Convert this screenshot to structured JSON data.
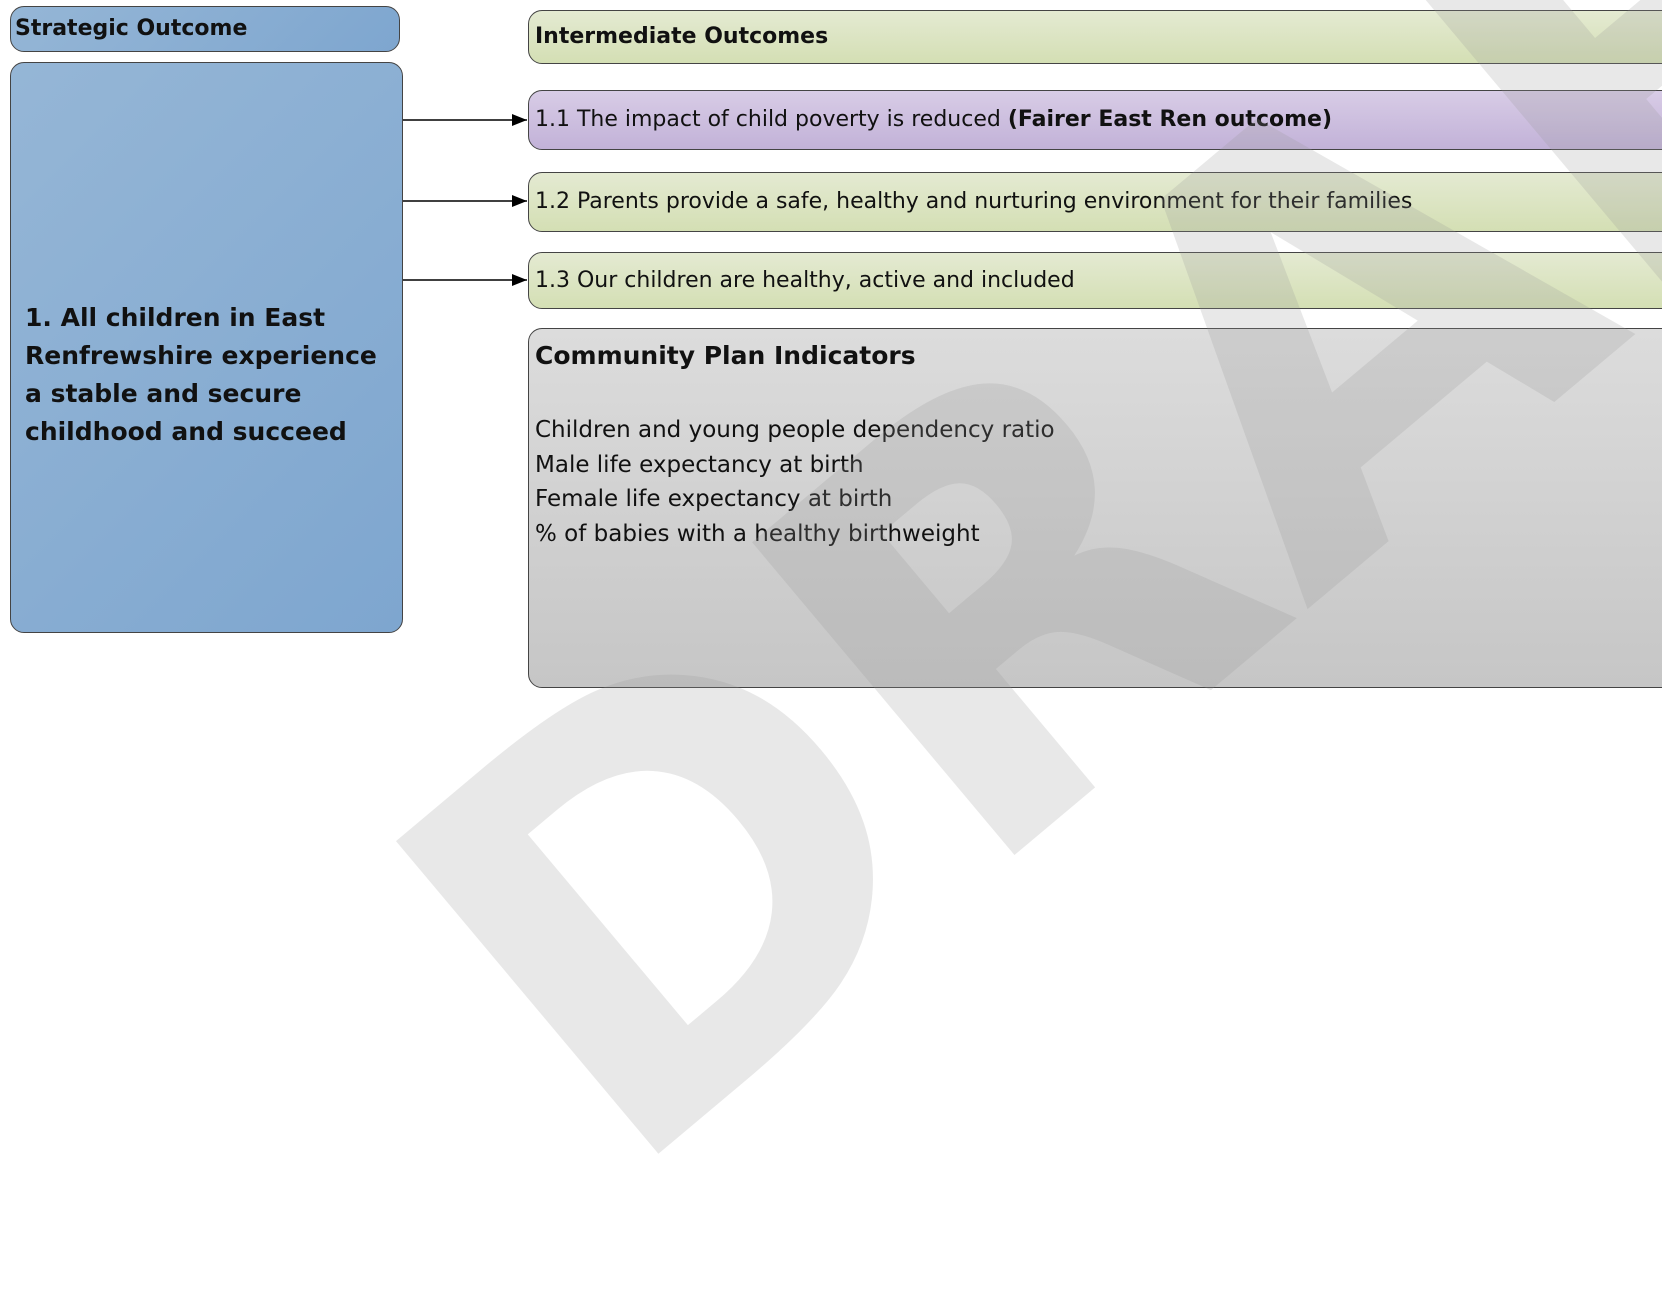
{
  "strategic": {
    "header": "Strategic Outcome",
    "outcome": "1. All children in East Renfrewshire experience a stable and secure childhood and succeed"
  },
  "intermediate": {
    "header": "Intermediate Outcomes",
    "items": [
      {
        "text": "1.1 The impact of child poverty is reduced",
        "emphasis": "(Fairer East Ren outcome)"
      },
      {
        "text": "1.2 Parents provide a safe, healthy and nurturing environment for their families"
      },
      {
        "text": "1.3 Our children are healthy, active and included"
      }
    ]
  },
  "indicators": {
    "header": "Community Plan Indicators",
    "items": [
      "Children and young people dependency ratio",
      "Male life expectancy at birth",
      "Female life expectancy at birth",
      "% of babies with a healthy birthweight"
    ]
  },
  "watermark": "DRAFT"
}
